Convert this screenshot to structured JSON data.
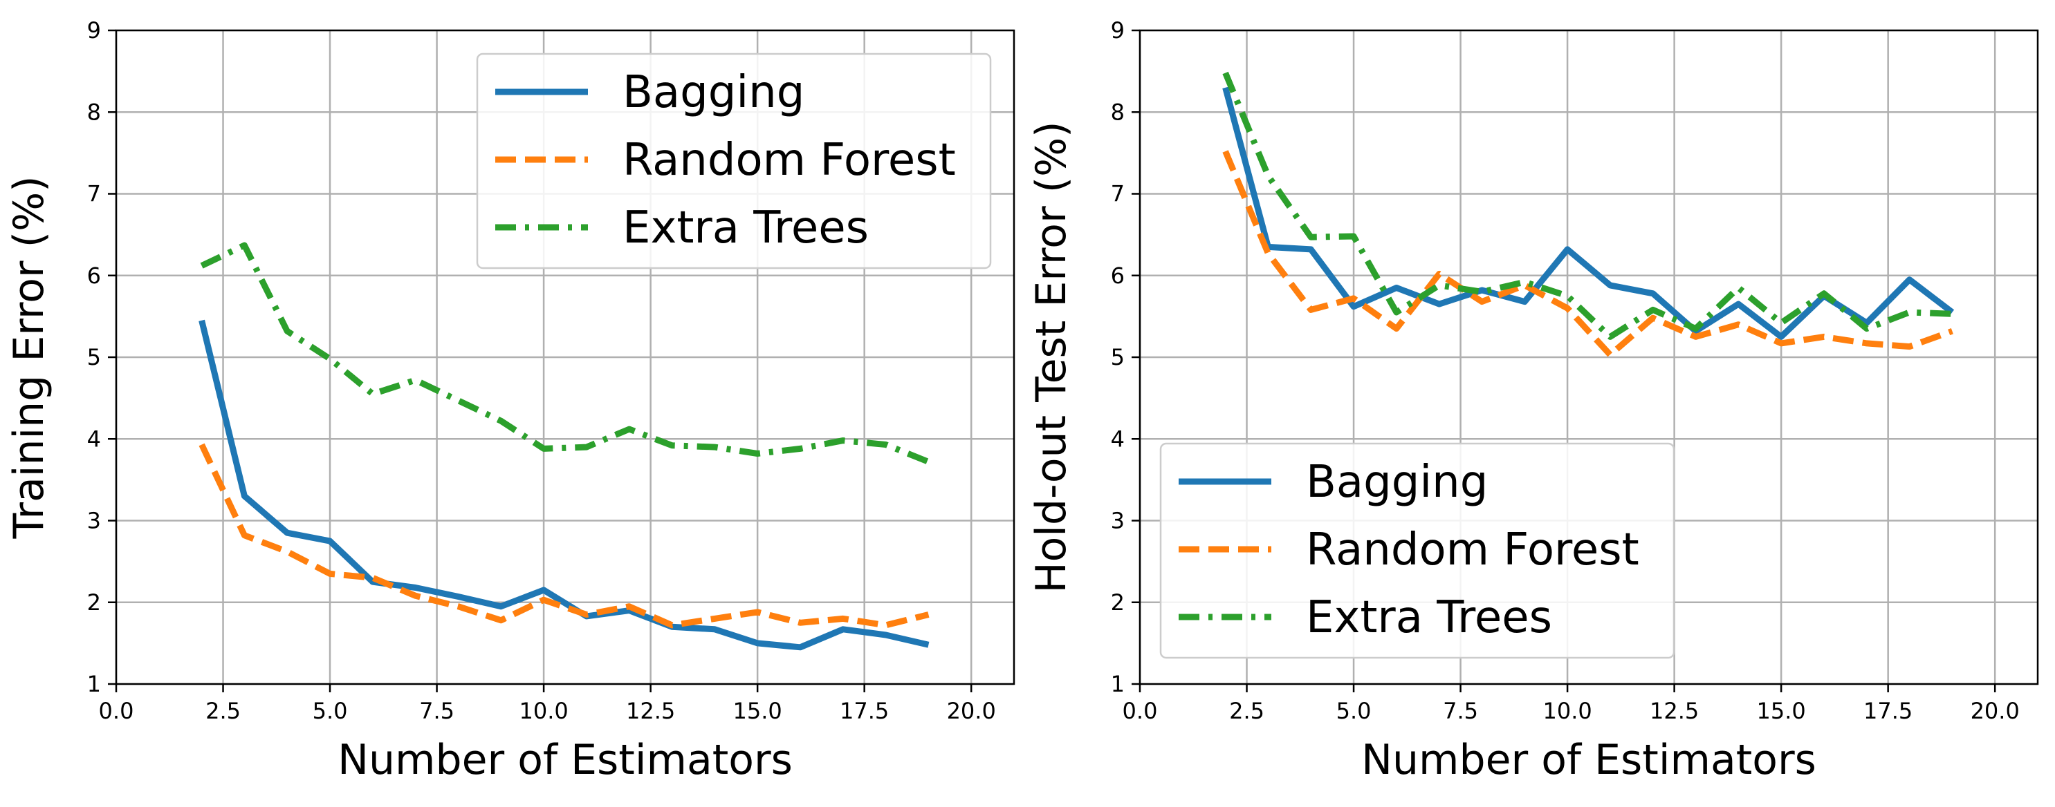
{
  "colors": {
    "bagging": "#1f77b4",
    "random_forest": "#ff7f0e",
    "extra_trees": "#2ca02c",
    "grid": "#b0b0b0"
  },
  "chart_data": [
    {
      "type": "line",
      "title": "",
      "xlabel": "Number of Estimators",
      "ylabel": "Training Error (%)",
      "xlim": [
        0,
        21
      ],
      "ylim": [
        1,
        9
      ],
      "xticks": [
        "0.0",
        "2.5",
        "5.0",
        "7.5",
        "10.0",
        "12.5",
        "15.0",
        "17.5",
        "20.0"
      ],
      "yticks": [
        "1",
        "2",
        "3",
        "4",
        "5",
        "6",
        "7",
        "8",
        "9"
      ],
      "grid": true,
      "legend_position": "upper right",
      "x": [
        2,
        3,
        4,
        5,
        6,
        7,
        8,
        9,
        10,
        11,
        12,
        13,
        14,
        15,
        16,
        17,
        18,
        19
      ],
      "series": [
        {
          "name": "Bagging",
          "style": "solid",
          "color": "#1f77b4",
          "values": [
            5.45,
            3.3,
            2.85,
            2.75,
            2.25,
            2.18,
            2.07,
            1.95,
            2.15,
            1.83,
            1.9,
            1.7,
            1.67,
            1.5,
            1.45,
            1.67,
            1.6,
            1.48
          ]
        },
        {
          "name": "Random Forest",
          "style": "dashed",
          "color": "#ff7f0e",
          "values": [
            3.93,
            2.82,
            2.62,
            2.35,
            2.3,
            2.08,
            1.95,
            1.78,
            2.03,
            1.85,
            1.95,
            1.72,
            1.8,
            1.88,
            1.75,
            1.8,
            1.72,
            1.85
          ]
        },
        {
          "name": "Extra Trees",
          "style": "dashdot",
          "color": "#2ca02c",
          "values": [
            6.12,
            6.37,
            5.32,
            4.98,
            4.55,
            4.72,
            4.47,
            4.22,
            3.88,
            3.9,
            4.12,
            3.92,
            3.9,
            3.82,
            3.88,
            3.98,
            3.93,
            3.72
          ]
        }
      ]
    },
    {
      "type": "line",
      "title": "",
      "xlabel": "Number of Estimators",
      "ylabel": "Hold-out Test Error (%)",
      "xlim": [
        0,
        21
      ],
      "ylim": [
        1,
        9
      ],
      "xticks": [
        "0.0",
        "2.5",
        "5.0",
        "7.5",
        "10.0",
        "12.5",
        "15.0",
        "17.5",
        "20.0"
      ],
      "yticks": [
        "1",
        "2",
        "3",
        "4",
        "5",
        "6",
        "7",
        "8",
        "9"
      ],
      "grid": true,
      "legend_position": "lower left",
      "x": [
        2,
        3,
        4,
        5,
        6,
        7,
        8,
        9,
        10,
        11,
        12,
        13,
        14,
        15,
        16,
        17,
        18,
        19
      ],
      "series": [
        {
          "name": "Bagging",
          "style": "solid",
          "color": "#1f77b4",
          "values": [
            8.3,
            6.35,
            6.32,
            5.62,
            5.85,
            5.65,
            5.82,
            5.68,
            6.32,
            5.88,
            5.78,
            5.32,
            5.65,
            5.25,
            5.75,
            5.42,
            5.95,
            5.55
          ]
        },
        {
          "name": "Random Forest",
          "style": "dashed",
          "color": "#ff7f0e",
          "values": [
            7.52,
            6.27,
            5.58,
            5.72,
            5.35,
            6.02,
            5.68,
            5.88,
            5.6,
            5.03,
            5.48,
            5.25,
            5.4,
            5.17,
            5.25,
            5.17,
            5.13,
            5.32
          ]
        },
        {
          "name": "Extra Trees",
          "style": "dashdot",
          "color": "#2ca02c",
          "values": [
            8.48,
            7.22,
            6.47,
            6.48,
            5.55,
            5.88,
            5.8,
            5.92,
            5.75,
            5.25,
            5.58,
            5.35,
            5.85,
            5.42,
            5.78,
            5.35,
            5.55,
            5.53
          ]
        }
      ]
    }
  ]
}
